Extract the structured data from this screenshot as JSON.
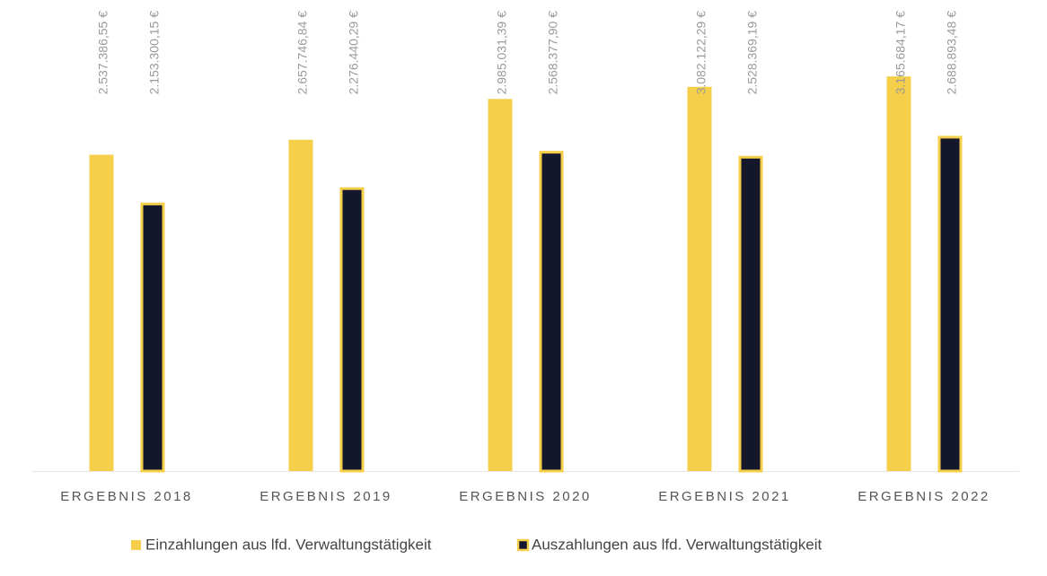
{
  "chart_data": {
    "type": "bar",
    "categories": [
      "ERGEBNIS 2018",
      "ERGEBNIS 2019",
      "ERGEBNIS 2020",
      "ERGEBNIS 2021",
      "ERGEBNIS 2022"
    ],
    "ylim": [
      0,
      3750000
    ],
    "series": [
      {
        "name": "Einzahlungen aus lfd. Verwaltungstätigkeit",
        "color": "#f5cf4a",
        "values": [
          2537386.55,
          2657746.84,
          2985031.39,
          3082122.29,
          3165684.17
        ],
        "value_labels": [
          "2.537.386,55 €",
          "2.657.746,84 €",
          "2.985.031,39 €",
          "3.082.122,29 €",
          "3.165.684,17 €"
        ]
      },
      {
        "name": "Auszahlungen aus lfd. Verwaltungstätigkeit",
        "color": "#14172b",
        "values": [
          2153300.15,
          2276440.29,
          2568377.9,
          2528369.19,
          2688893.48
        ],
        "value_labels": [
          "2.153.300,15 €",
          "2.276.440,29 €",
          "2.568.377,90 €",
          "2.528.369,19 €",
          "2.688.893,48 €"
        ]
      }
    ]
  }
}
